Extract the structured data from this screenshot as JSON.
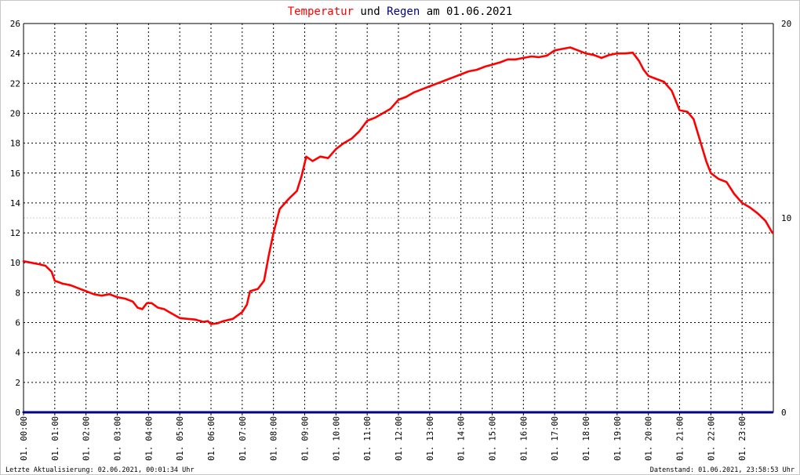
{
  "title": {
    "part1": "Temperatur",
    "part2": " und ",
    "part3": "Regen",
    "part4": " am 01.06.2021",
    "color1": "#ff0000",
    "color2": "#000000",
    "color3": "#000080",
    "color4": "#000000"
  },
  "footer": {
    "left": "Letzte Aktualisierung: 02.06.2021, 00:01:34 Uhr",
    "right": "Datenstand: 01.06.2021, 23:58:53 Uhr"
  },
  "chart_data": {
    "type": "line",
    "x_unit": "hours",
    "xlim": [
      0,
      24
    ],
    "ylim": [
      0,
      26
    ],
    "y2lim": [
      0,
      20
    ],
    "y_ticks": [
      "0",
      "2",
      "4",
      "6",
      "8",
      "10",
      "12",
      "14",
      "16",
      "18",
      "20",
      "22",
      "24",
      "26"
    ],
    "y2_ticks": [
      "0",
      "10",
      "20"
    ],
    "x_ticks": [
      {
        "h": 0,
        "label": "01. 00:00"
      },
      {
        "h": 1,
        "label": "01. 01:00"
      },
      {
        "h": 2,
        "label": "01. 02:00"
      },
      {
        "h": 3,
        "label": "01. 03:00"
      },
      {
        "h": 4,
        "label": "01. 04:00"
      },
      {
        "h": 5,
        "label": "01. 05:00"
      },
      {
        "h": 6,
        "label": "01. 06:00"
      },
      {
        "h": 7,
        "label": "01. 07:00"
      },
      {
        "h": 8,
        "label": "01. 08:00"
      },
      {
        "h": 9,
        "label": "01. 09:00"
      },
      {
        "h": 10,
        "label": "01. 10:00"
      },
      {
        "h": 11,
        "label": "01. 11:00"
      },
      {
        "h": 12,
        "label": "01. 12:00"
      },
      {
        "h": 13,
        "label": "01. 13:00"
      },
      {
        "h": 14,
        "label": "01. 14:00"
      },
      {
        "h": 15,
        "label": "01. 15:00"
      },
      {
        "h": 16,
        "label": "01. 16:00"
      },
      {
        "h": 17,
        "label": "01. 17:00"
      },
      {
        "h": 18,
        "label": "01. 18:00"
      },
      {
        "h": 19,
        "label": "01. 19:00"
      },
      {
        "h": 20,
        "label": "01. 20:00"
      },
      {
        "h": 21,
        "label": "01. 21:00"
      },
      {
        "h": 22,
        "label": "01. 22:00"
      },
      {
        "h": 23,
        "label": "01. 23:00"
      }
    ],
    "grid": true,
    "series": [
      {
        "name": "Temperatur",
        "color": "#ff0000",
        "axis": "left",
        "points": [
          [
            0.0,
            10.1
          ],
          [
            0.25,
            10.0
          ],
          [
            0.5,
            9.9
          ],
          [
            0.7,
            9.8
          ],
          [
            0.9,
            9.4
          ],
          [
            1.0,
            8.8
          ],
          [
            1.25,
            8.6
          ],
          [
            1.5,
            8.5
          ],
          [
            1.75,
            8.3
          ],
          [
            2.0,
            8.1
          ],
          [
            2.25,
            7.9
          ],
          [
            2.5,
            7.8
          ],
          [
            2.75,
            7.9
          ],
          [
            3.0,
            7.7
          ],
          [
            3.25,
            7.6
          ],
          [
            3.5,
            7.4
          ],
          [
            3.65,
            7.0
          ],
          [
            3.8,
            6.9
          ],
          [
            3.95,
            7.3
          ],
          [
            4.1,
            7.3
          ],
          [
            4.3,
            7.0
          ],
          [
            4.5,
            6.9
          ],
          [
            4.75,
            6.6
          ],
          [
            5.0,
            6.3
          ],
          [
            5.25,
            6.25
          ],
          [
            5.5,
            6.2
          ],
          [
            5.75,
            6.05
          ],
          [
            5.9,
            6.1
          ],
          [
            6.0,
            5.9
          ],
          [
            6.2,
            5.95
          ],
          [
            6.4,
            6.1
          ],
          [
            6.7,
            6.25
          ],
          [
            7.0,
            6.7
          ],
          [
            7.15,
            7.2
          ],
          [
            7.25,
            8.1
          ],
          [
            7.5,
            8.25
          ],
          [
            7.7,
            8.8
          ],
          [
            7.85,
            10.5
          ],
          [
            8.0,
            12.0
          ],
          [
            8.2,
            13.6
          ],
          [
            8.5,
            14.3
          ],
          [
            8.75,
            14.8
          ],
          [
            8.9,
            15.8
          ],
          [
            9.05,
            17.1
          ],
          [
            9.25,
            16.8
          ],
          [
            9.5,
            17.1
          ],
          [
            9.75,
            17.0
          ],
          [
            10.0,
            17.6
          ],
          [
            10.25,
            18.0
          ],
          [
            10.5,
            18.3
          ],
          [
            10.75,
            18.8
          ],
          [
            11.0,
            19.5
          ],
          [
            11.25,
            19.7
          ],
          [
            11.5,
            20.0
          ],
          [
            11.75,
            20.3
          ],
          [
            12.0,
            20.9
          ],
          [
            12.25,
            21.1
          ],
          [
            12.5,
            21.4
          ],
          [
            12.75,
            21.6
          ],
          [
            13.0,
            21.8
          ],
          [
            13.25,
            22.0
          ],
          [
            13.5,
            22.2
          ],
          [
            13.75,
            22.4
          ],
          [
            14.0,
            22.6
          ],
          [
            14.25,
            22.8
          ],
          [
            14.5,
            22.9
          ],
          [
            14.75,
            23.1
          ],
          [
            15.0,
            23.25
          ],
          [
            15.25,
            23.4
          ],
          [
            15.5,
            23.6
          ],
          [
            15.75,
            23.6
          ],
          [
            16.0,
            23.7
          ],
          [
            16.25,
            23.8
          ],
          [
            16.5,
            23.75
          ],
          [
            16.75,
            23.85
          ],
          [
            17.0,
            24.2
          ],
          [
            17.25,
            24.3
          ],
          [
            17.5,
            24.4
          ],
          [
            17.75,
            24.2
          ],
          [
            18.0,
            24.0
          ],
          [
            18.25,
            23.9
          ],
          [
            18.5,
            23.7
          ],
          [
            18.75,
            23.9
          ],
          [
            19.0,
            24.0
          ],
          [
            19.25,
            24.0
          ],
          [
            19.5,
            24.05
          ],
          [
            19.7,
            23.5
          ],
          [
            19.85,
            22.9
          ],
          [
            20.0,
            22.5
          ],
          [
            20.25,
            22.3
          ],
          [
            20.5,
            22.1
          ],
          [
            20.75,
            21.5
          ],
          [
            21.0,
            20.2
          ],
          [
            21.25,
            20.1
          ],
          [
            21.45,
            19.6
          ],
          [
            21.65,
            18.2
          ],
          [
            21.85,
            16.8
          ],
          [
            22.0,
            16.0
          ],
          [
            22.25,
            15.6
          ],
          [
            22.5,
            15.4
          ],
          [
            22.75,
            14.6
          ],
          [
            23.0,
            14.0
          ],
          [
            23.25,
            13.7
          ],
          [
            23.5,
            13.3
          ],
          [
            23.75,
            12.8
          ],
          [
            23.97,
            12.0
          ]
        ]
      },
      {
        "name": "Regen",
        "color": "#000080",
        "axis": "right",
        "points": [
          [
            0.0,
            0
          ],
          [
            23.97,
            0
          ]
        ]
      }
    ]
  }
}
